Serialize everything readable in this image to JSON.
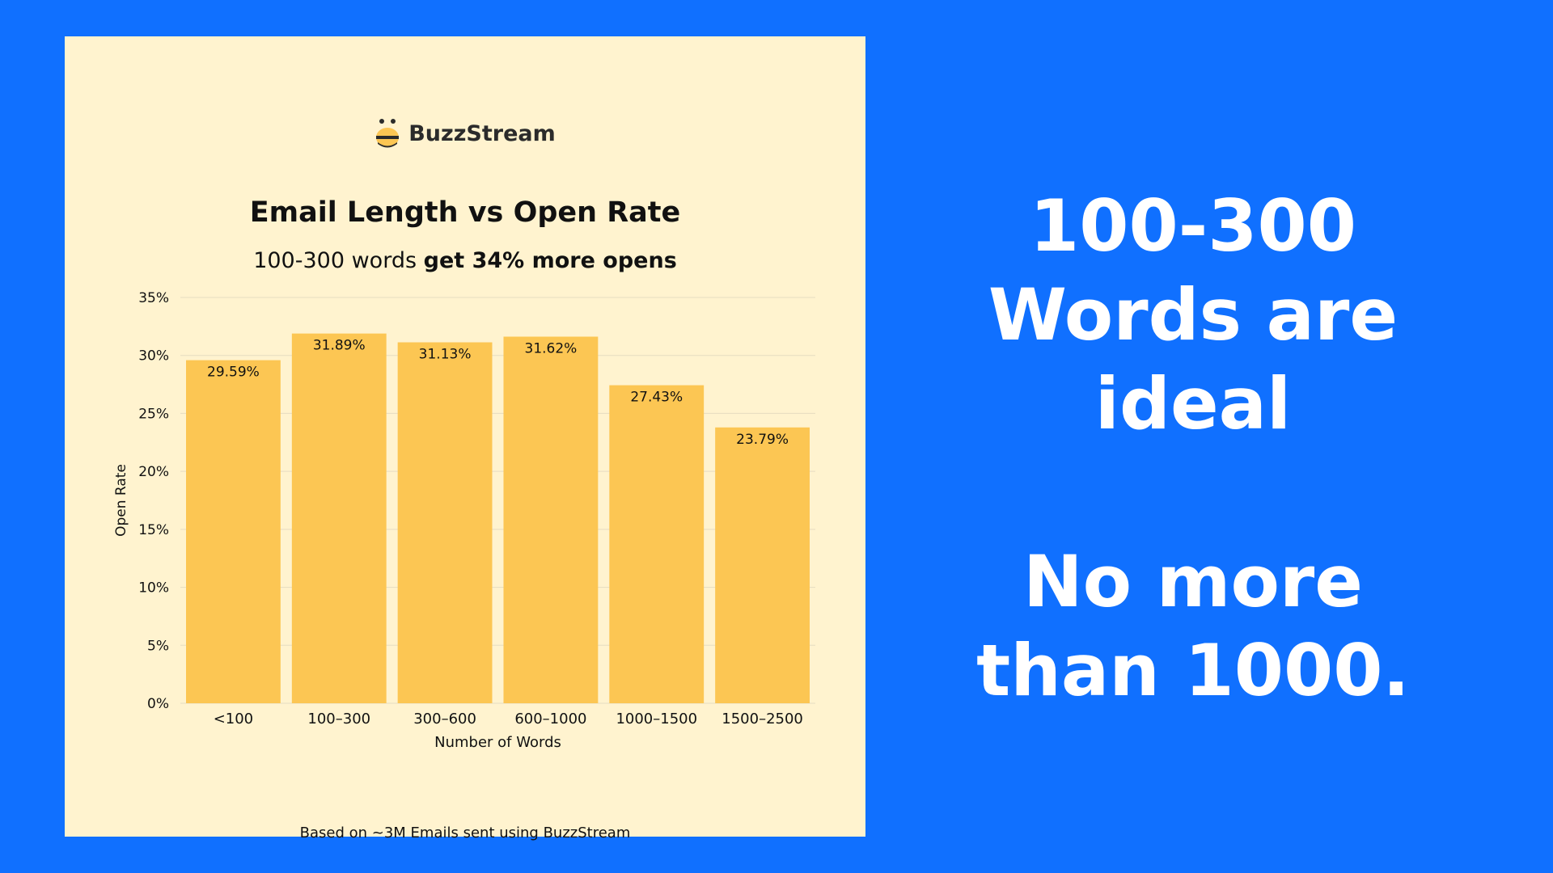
{
  "card": {
    "brand": "BuzzStream",
    "subtitle_plain": "100-300 words",
    "subtitle_bold": "get 34% more opens",
    "footnote": "Based on ~3M Emails sent using BuzzStream"
  },
  "chart_data": {
    "type": "bar",
    "title": "Email Length vs Open Rate",
    "categories": [
      "<100",
      "100–300",
      "300–600",
      "600–1000",
      "1000–1500",
      "1500–2500"
    ],
    "values": [
      29.59,
      31.89,
      31.13,
      31.62,
      27.43,
      23.79
    ],
    "data_labels": [
      "29.59%",
      "31.89%",
      "31.13%",
      "31.62%",
      "27.43%",
      "23.79%"
    ],
    "xlabel": "Number of Words",
    "ylabel": "Open Rate",
    "ylim": [
      0,
      35
    ],
    "yticks": [
      0,
      5,
      10,
      15,
      20,
      25,
      30,
      35
    ],
    "ytick_labels": [
      "0%",
      "5%",
      "10%",
      "15%",
      "20%",
      "25%",
      "30%",
      "35%"
    ],
    "grid": true,
    "bar_color": "#fcc653"
  },
  "headline": {
    "lines": [
      "100-300",
      "Words are",
      "ideal"
    ],
    "lines2": [
      "No more",
      "than 1000."
    ]
  }
}
